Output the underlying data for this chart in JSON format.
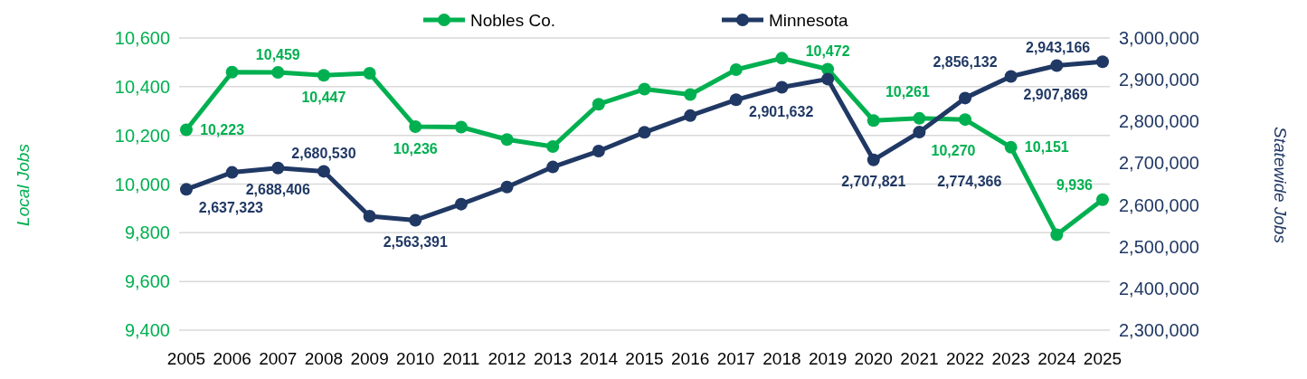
{
  "chart_data": {
    "type": "line",
    "ylabel": "Local Jobs",
    "y2label": "Statewide Jobs",
    "categories": [
      "2005",
      "2006",
      "2007",
      "2008",
      "2009",
      "2010",
      "2011",
      "2012",
      "2013",
      "2014",
      "2015",
      "2016",
      "2017",
      "2018",
      "2019",
      "2020",
      "2021",
      "2022",
      "2023",
      "2024",
      "2025"
    ],
    "series": [
      {
        "name": "Nobles Co.",
        "color": "#00b050",
        "values": [
          10223,
          10460,
          10459,
          10447,
          10455,
          10236,
          10234,
          10183,
          10154,
          10328,
          10390,
          10368,
          10470,
          10517,
          10472,
          10261,
          10270,
          10265,
          10151,
          9792,
          9936
        ],
        "value_labels": [
          "10,223",
          null,
          "10,459",
          "10,447",
          null,
          "10,236",
          null,
          null,
          null,
          null,
          null,
          null,
          null,
          null,
          "10,472",
          "10,261",
          "10,270",
          null,
          "10,151",
          null,
          "9,936"
        ]
      },
      {
        "name": "Minnesota",
        "color": "#203864",
        "axis": "y2",
        "values": [
          2637323,
          2678000,
          2688406,
          2680530,
          2573000,
          2563391,
          2602000,
          2643000,
          2691000,
          2729000,
          2774000,
          2814000,
          2852000,
          2882000,
          2901632,
          2707821,
          2774366,
          2856132,
          2907869,
          2934000,
          2943166
        ],
        "value_labels": [
          "2,637,323",
          null,
          "2,688,406",
          "2,680,530",
          null,
          "2,563,391",
          null,
          null,
          null,
          null,
          null,
          null,
          null,
          null,
          "2,901,632",
          "2,707,821",
          "2,774,366",
          "2,856,132",
          "2,907,869",
          null,
          "2,943,166"
        ]
      }
    ],
    "ylim": [
      9400,
      10600
    ],
    "yticks": [
      {
        "value": 9400,
        "label": "9,400"
      },
      {
        "value": 9600,
        "label": "9,600"
      },
      {
        "value": 9800,
        "label": "9,800"
      },
      {
        "value": 10000,
        "label": "10,000"
      },
      {
        "value": 10200,
        "label": "10,200"
      },
      {
        "value": 10400,
        "label": "10,400"
      },
      {
        "value": 10600,
        "label": "10,600"
      }
    ],
    "y2lim": [
      2300000,
      3000000
    ],
    "y2ticks": [
      {
        "value": 2300000,
        "label": "2,300,000"
      },
      {
        "value": 2400000,
        "label": "2,400,000"
      },
      {
        "value": 2500000,
        "label": "2,500,000"
      },
      {
        "value": 2600000,
        "label": "2,600,000"
      },
      {
        "value": 2700000,
        "label": "2,700,000"
      },
      {
        "value": 2800000,
        "label": "2,800,000"
      },
      {
        "value": 2900000,
        "label": "2,900,000"
      },
      {
        "value": 3000000,
        "label": "3,000,000"
      }
    ],
    "grid": "y",
    "legend": "top",
    "marker": "circle",
    "line_style": "solid"
  }
}
